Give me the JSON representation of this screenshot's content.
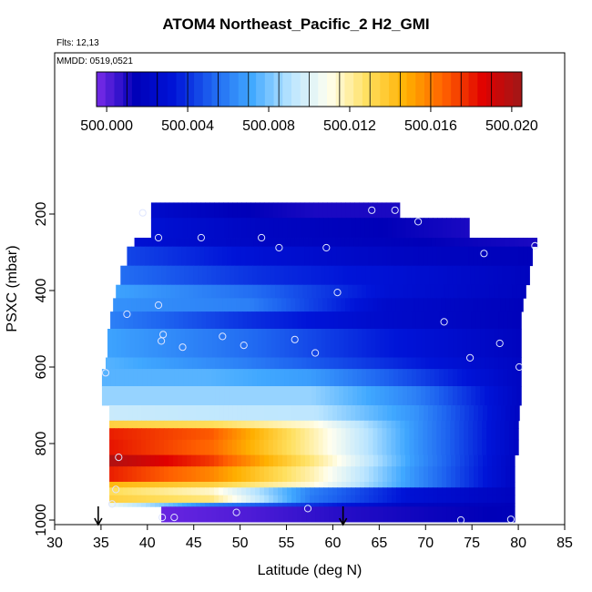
{
  "chart_data": {
    "type": "heatmap",
    "title": "ATOM4 Northeast_Pacific_2 H2_GMI",
    "info_lines": [
      "Flts: 12,13",
      "MMDD: 0519,0521"
    ],
    "xlabel": "Latitude (deg N)",
    "ylabel": "PSXC (mbar)",
    "xlim": [
      30,
      85
    ],
    "ylim": [
      1000,
      0
    ],
    "x_ticks": [
      30,
      35,
      40,
      45,
      50,
      55,
      60,
      65,
      70,
      75,
      80,
      85
    ],
    "y_ticks": [
      200,
      400,
      600,
      800,
      1000
    ],
    "colorbar": {
      "range": [
        499.9995,
        500.0205
      ],
      "tick_values": [
        500.0,
        500.004,
        500.008,
        500.012,
        500.016,
        500.02
      ],
      "tick_labels": [
        "500.000",
        "500.004",
        "500.008",
        "500.012",
        "500.016",
        "500.020"
      ],
      "colors": [
        "#7b2ce8",
        "#0000b8",
        "#0014d8",
        "#1e64f0",
        "#40a8ff",
        "#b8e4ff",
        "#fffff0",
        "#ffe060",
        "#ffb000",
        "#ff6000",
        "#e00000",
        "#a01818"
      ]
    },
    "layers": [
      {
        "p_top": 170,
        "p_bottom": 210,
        "lat_min": 40.4,
        "lat_max": 67.2,
        "values": [
          500.0025,
          500.0015,
          500.001,
          500.001
        ]
      },
      {
        "p_top": 210,
        "p_bottom": 262,
        "lat_min": 40.4,
        "lat_max": 74.7,
        "values": [
          500.003,
          500.002,
          500.0015,
          500.001
        ]
      },
      {
        "p_top": 262,
        "p_bottom": 285,
        "lat_min": 38.6,
        "lat_max": 82.0,
        "values": [
          500.003,
          500.002,
          500.0015,
          500.001
        ]
      },
      {
        "p_top": 285,
        "p_bottom": 335,
        "lat_min": 37.8,
        "lat_max": 81.5,
        "values": [
          500.0045,
          500.003,
          500.002,
          500.0015
        ]
      },
      {
        "p_top": 335,
        "p_bottom": 385,
        "lat_min": 37.1,
        "lat_max": 81.2,
        "values": [
          500.0055,
          500.004,
          500.003,
          500.0018
        ]
      },
      {
        "p_top": 385,
        "p_bottom": 420,
        "lat_min": 36.6,
        "lat_max": 80.8,
        "values": [
          500.007,
          500.0055,
          500.003,
          500.0018
        ]
      },
      {
        "p_top": 420,
        "p_bottom": 455,
        "lat_min": 36.3,
        "lat_max": 80.5,
        "values": [
          500.0065,
          500.006,
          500.0025,
          500.0016
        ]
      },
      {
        "p_top": 455,
        "p_bottom": 500,
        "lat_min": 36.0,
        "lat_max": 80.3,
        "values": [
          500.006,
          500.004,
          500.0025,
          500.0016
        ]
      },
      {
        "p_top": 500,
        "p_bottom": 575,
        "lat_min": 35.7,
        "lat_max": 80.3,
        "values": [
          500.007,
          500.0055,
          500.0035,
          500.0018
        ]
      },
      {
        "p_top": 575,
        "p_bottom": 605,
        "lat_min": 35.5,
        "lat_max": 80.3,
        "values": [
          500.0075,
          500.006,
          500.004,
          500.002
        ]
      },
      {
        "p_top": 605,
        "p_bottom": 650,
        "lat_min": 35.1,
        "lat_max": 80.3,
        "values": [
          500.0075,
          500.0075,
          500.0068,
          500.0045,
          500.002
        ]
      },
      {
        "p_top": 650,
        "p_bottom": 700,
        "lat_min": 35.1,
        "lat_max": 80.3,
        "values": [
          500.0085,
          500.0085,
          500.0085,
          500.006,
          500.002
        ]
      },
      {
        "p_top": 700,
        "p_bottom": 740,
        "lat_min": 35.9,
        "lat_max": 80.1,
        "values": [
          500.0095,
          500.0093,
          500.0092,
          500.0065,
          500.002
        ]
      },
      {
        "p_top": 740,
        "p_bottom": 760,
        "lat_min": 35.9,
        "lat_max": 80.0,
        "values": [
          500.0135,
          500.013,
          500.0112,
          500.0066,
          500.002
        ]
      },
      {
        "p_top": 760,
        "p_bottom": 790,
        "lat_min": 35.9,
        "lat_max": 80.0,
        "values": [
          500.018,
          500.0168,
          500.0118,
          500.0066,
          500.002
        ]
      },
      {
        "p_top": 790,
        "p_bottom": 830,
        "lat_min": 35.9,
        "lat_max": 80.0,
        "values": [
          500.0182,
          500.0165,
          500.0118,
          500.0066,
          500.002
        ]
      },
      {
        "p_top": 830,
        "p_bottom": 860,
        "lat_min": 35.9,
        "lat_max": 79.6,
        "values": [
          500.02,
          500.0175,
          500.0125,
          500.0068,
          500.002
        ]
      },
      {
        "p_top": 860,
        "p_bottom": 900,
        "lat_min": 35.9,
        "lat_max": 79.6,
        "values": [
          500.018,
          500.0158,
          500.0118,
          500.0066,
          500.002
        ]
      },
      {
        "p_top": 900,
        "p_bottom": 915,
        "lat_min": 35.9,
        "lat_max": 79.6,
        "values": [
          500.0145,
          500.0135,
          500.0112,
          500.0066,
          500.002
        ]
      },
      {
        "p_top": 915,
        "p_bottom": 935,
        "lat_min": 35.9,
        "lat_max": 79.6,
        "values": [
          500.013,
          500.0115,
          500.006,
          500.003,
          500.0018
        ]
      },
      {
        "p_top": 935,
        "p_bottom": 955,
        "lat_min": 35.9,
        "lat_max": 79.6,
        "values": [
          500.0135,
          500.0125,
          500.0058,
          500.003,
          500.0018
        ]
      },
      {
        "p_top": 955,
        "p_bottom": 965,
        "lat_min": 35.9,
        "lat_max": 79.6,
        "values": [
          500.0105,
          500.006,
          500.004,
          500.002,
          500.0015
        ]
      },
      {
        "p_top": 965,
        "p_bottom": 1005,
        "lat_min": 41.5,
        "lat_max": 79.6,
        "values": [
          499.9998,
          500.0002,
          500.0008,
          500.0012,
          500.0015
        ]
      }
    ],
    "points": [
      {
        "lat": 39.5,
        "p": 197
      },
      {
        "lat": 41.2,
        "p": 262
      },
      {
        "lat": 45.8,
        "p": 262
      },
      {
        "lat": 52.3,
        "p": 262
      },
      {
        "lat": 54.2,
        "p": 288
      },
      {
        "lat": 59.3,
        "p": 288
      },
      {
        "lat": 64.2,
        "p": 190
      },
      {
        "lat": 66.7,
        "p": 190
      },
      {
        "lat": 69.2,
        "p": 220
      },
      {
        "lat": 76.3,
        "p": 303
      },
      {
        "lat": 81.8,
        "p": 283
      },
      {
        "lat": 60.5,
        "p": 405
      },
      {
        "lat": 37.8,
        "p": 462
      },
      {
        "lat": 41.2,
        "p": 438
      },
      {
        "lat": 41.7,
        "p": 515
      },
      {
        "lat": 41.5,
        "p": 532
      },
      {
        "lat": 43.8,
        "p": 548
      },
      {
        "lat": 48.1,
        "p": 520
      },
      {
        "lat": 50.4,
        "p": 543
      },
      {
        "lat": 55.9,
        "p": 528
      },
      {
        "lat": 58.1,
        "p": 563
      },
      {
        "lat": 72.0,
        "p": 482
      },
      {
        "lat": 74.8,
        "p": 576
      },
      {
        "lat": 78.0,
        "p": 538
      },
      {
        "lat": 80.1,
        "p": 600
      },
      {
        "lat": 35.5,
        "p": 615
      },
      {
        "lat": 36.9,
        "p": 836
      },
      {
        "lat": 36.6,
        "p": 920
      },
      {
        "lat": 36.2,
        "p": 958
      },
      {
        "lat": 41.6,
        "p": 993
      },
      {
        "lat": 42.9,
        "p": 993
      },
      {
        "lat": 49.6,
        "p": 980
      },
      {
        "lat": 57.3,
        "p": 970
      },
      {
        "lat": 73.8,
        "p": 1000
      },
      {
        "lat": 79.2,
        "p": 998
      }
    ],
    "markers": [
      {
        "lat": 34.7,
        "p": 1000
      },
      {
        "lat": 61.1,
        "p": 1000
      }
    ]
  }
}
